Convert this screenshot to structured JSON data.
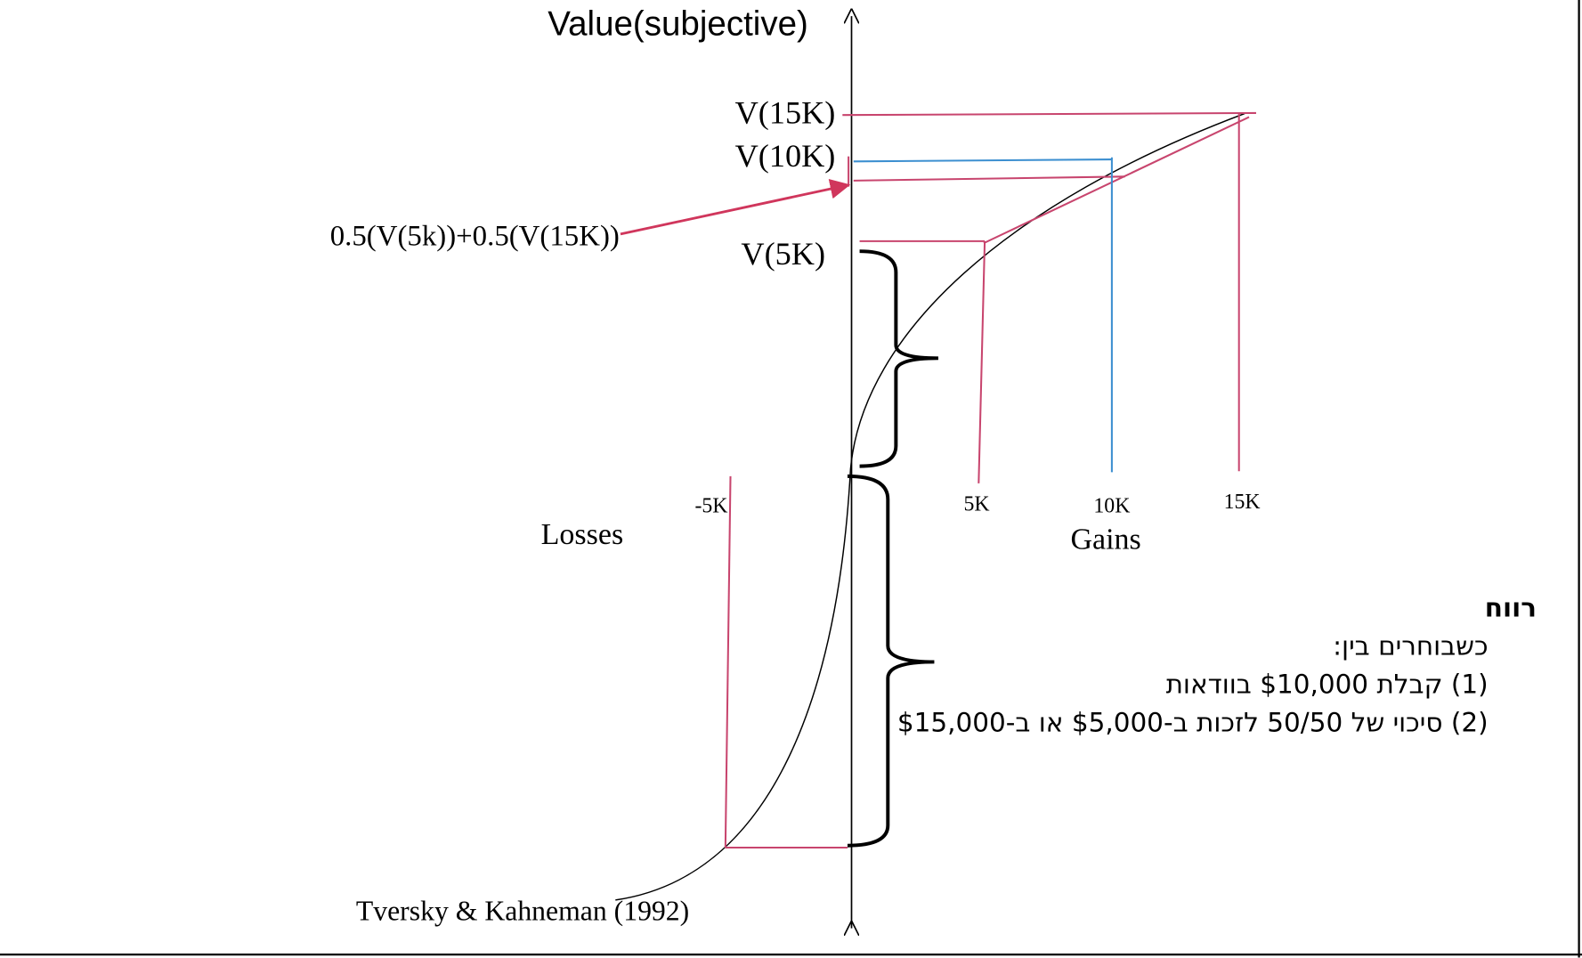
{
  "axis": {
    "y_label": "Value(subjective)",
    "losses": "Losses",
    "gains": "Gains"
  },
  "y_labels": {
    "v15k": "V(15K)",
    "v10k": "V(10K)",
    "v5k": "V(5K)",
    "mix": "0.5(V(5k))+0.5(V(15K))"
  },
  "x_labels": {
    "minus5k": "-5K",
    "k5": "5K",
    "k10": "10K",
    "k15": "15K"
  },
  "text": {
    "heading": "רווח",
    "line1": "כשבוחרים בין:",
    "line2": "(1) קבלת $10,000 בוודאות",
    "line3": "(2) סיכוי של 50/50 לזכות ב-$5,000 או ב-$15,000"
  },
  "citation": "Tversky & Kahneman (1992)"
}
